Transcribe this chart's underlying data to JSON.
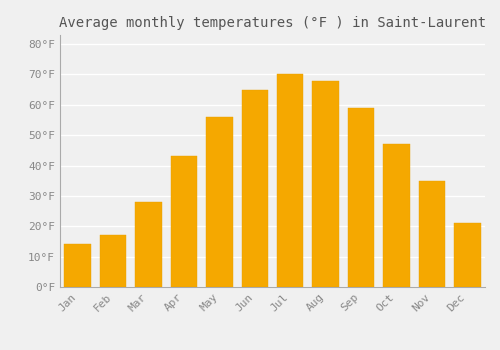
{
  "title": "Average monthly temperatures (°F ) in Saint-Laurent",
  "months": [
    "Jan",
    "Feb",
    "Mar",
    "Apr",
    "May",
    "Jun",
    "Jul",
    "Aug",
    "Sep",
    "Oct",
    "Nov",
    "Dec"
  ],
  "values": [
    14,
    17,
    28,
    43,
    56,
    65,
    70,
    68,
    59,
    47,
    35,
    21
  ],
  "bar_color_top": "#FFC04C",
  "bar_color_bottom": "#F5A800",
  "bar_edge_color": "#E8A000",
  "ylim": [
    0,
    83
  ],
  "yticks": [
    0,
    10,
    20,
    30,
    40,
    50,
    60,
    70,
    80
  ],
  "ytick_labels": [
    "0°F",
    "10°F",
    "20°F",
    "30°F",
    "40°F",
    "50°F",
    "60°F",
    "70°F",
    "80°F"
  ],
  "background_color": "#f0f0f0",
  "grid_color": "#ffffff",
  "title_fontsize": 10,
  "tick_fontsize": 8,
  "bar_width": 0.75
}
